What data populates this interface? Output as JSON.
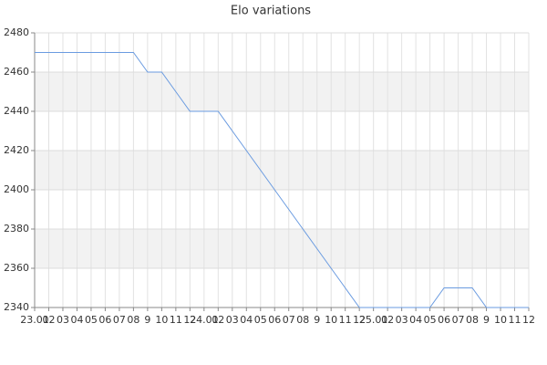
{
  "chart_data": {
    "type": "line",
    "title": "Elo variations",
    "categories": [
      "23.01",
      "02",
      "03",
      "04",
      "05",
      "06",
      "07",
      "08",
      "9",
      "10",
      "11",
      "12",
      "24.01",
      "02",
      "03",
      "04",
      "05",
      "06",
      "07",
      "08",
      "9",
      "10",
      "11",
      "12",
      "25.01",
      "02",
      "03",
      "04",
      "05",
      "06",
      "07",
      "08",
      "9",
      "10",
      "11",
      "12"
    ],
    "series": [
      {
        "name": "Elo",
        "color": "#6a9be0",
        "values": [
          2470,
          2470,
          2470,
          2470,
          2470,
          2470,
          2470,
          2470,
          2460,
          2460,
          2450,
          2440,
          2440,
          2440,
          2430,
          2420,
          2410,
          2400,
          2390,
          2380,
          2370,
          2360,
          2350,
          2340,
          2340,
          2340,
          2340,
          2340,
          2340,
          2350,
          2350,
          2350,
          2340,
          2340,
          2340,
          2340
        ]
      }
    ],
    "ylim": [
      2340,
      2480
    ],
    "yticks": [
      2340,
      2360,
      2380,
      2400,
      2420,
      2440,
      2460,
      2480
    ],
    "grid": true,
    "bands": true
  }
}
